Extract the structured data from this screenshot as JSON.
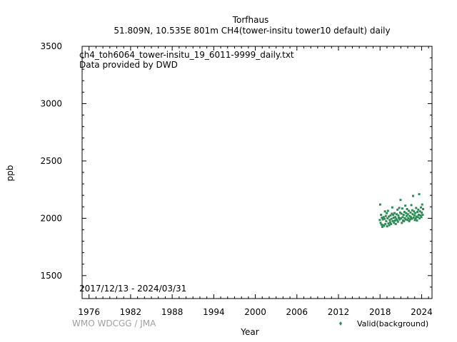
{
  "chart_data": {
    "type": "scatter",
    "title": "Torfhaus",
    "subtitle": "51.809N, 10.535E 801m     CH4(tower-insitu tower10 default) daily",
    "file_label": "ch4_toh6064_tower-insitu_19_6011-9999_daily.txt",
    "provider_label": "Data provided by DWD",
    "date_range_label": "2017/12/13 - 2024/03/31",
    "credit": "WMO WDCGG / JMA",
    "xlabel": "Year",
    "ylabel": "ppb",
    "xlim": [
      1975,
      2025.5
    ],
    "ylim": [
      1300,
      3500
    ],
    "x_ticks": [
      1976,
      1982,
      1988,
      1994,
      2000,
      2006,
      2012,
      2018,
      2024
    ],
    "y_ticks": [
      1500,
      2000,
      2500,
      3000,
      3500
    ],
    "grid": false,
    "legend_position": "bottom-right",
    "series": [
      {
        "name": "Valid(background)",
        "color": "#2e8b57",
        "x": [
          2017.96,
          2018.02,
          2018.08,
          2018.15,
          2018.21,
          2018.27,
          2018.33,
          2018.4,
          2018.46,
          2018.52,
          2018.58,
          2018.65,
          2018.71,
          2018.77,
          2018.83,
          2018.9,
          2018.96,
          2019.02,
          2019.08,
          2019.15,
          2019.21,
          2019.27,
          2019.33,
          2019.4,
          2019.46,
          2019.52,
          2019.58,
          2019.65,
          2019.71,
          2019.77,
          2019.83,
          2019.9,
          2019.96,
          2020.02,
          2020.08,
          2020.15,
          2020.21,
          2020.27,
          2020.33,
          2020.4,
          2020.46,
          2020.52,
          2020.58,
          2020.65,
          2020.71,
          2020.77,
          2020.83,
          2020.9,
          2020.96,
          2021.02,
          2021.08,
          2021.15,
          2021.21,
          2021.27,
          2021.33,
          2021.4,
          2021.46,
          2021.52,
          2021.58,
          2021.65,
          2021.71,
          2021.77,
          2021.83,
          2021.9,
          2021.96,
          2022.02,
          2022.08,
          2022.15,
          2022.21,
          2022.27,
          2022.33,
          2022.4,
          2022.46,
          2022.52,
          2022.58,
          2022.65,
          2022.71,
          2022.77,
          2022.83,
          2022.9,
          2022.96,
          2023.02,
          2023.08,
          2023.15,
          2023.21,
          2023.27,
          2023.33,
          2023.4,
          2023.46,
          2023.52,
          2023.58,
          2023.65,
          2023.71,
          2023.77,
          2023.83,
          2023.9,
          2023.96,
          2024.02,
          2024.08,
          2024.15,
          2024.21
        ],
        "y": [
          1985,
          2120,
          1960,
          2030,
          1945,
          2005,
          1925,
          1990,
          1940,
          2010,
          1935,
          1995,
          2060,
          1950,
          2020,
          1975,
          2045,
          1930,
          2000,
          2065,
          1955,
          2015,
          1940,
          1985,
          1965,
          2025,
          1950,
          1995,
          2040,
          2095,
          1975,
          2030,
          2005,
          1960,
          2045,
          1980,
          2010,
          1950,
          1995,
          2035,
          1985,
          2075,
          1970,
          2025,
          2005,
          2090,
          1990,
          2050,
          2160,
          2000,
          2040,
          1960,
          2085,
          2010,
          1980,
          2030,
          1975,
          2055,
          2000,
          2110,
          1990,
          2045,
          2020,
          2080,
          1985,
          2035,
          2000,
          2065,
          1975,
          2020,
          1990,
          2050,
          2010,
          2115,
          1995,
          2070,
          2035,
          2195,
          2005,
          2060,
          2025,
          1985,
          2045,
          2000,
          2090,
          2015,
          1980,
          2055,
          2010,
          2075,
          2030,
          2210,
          2000,
          2060,
          2025,
          2095,
          2010,
          2050,
          2120,
          2030,
          2080
        ]
      }
    ]
  }
}
